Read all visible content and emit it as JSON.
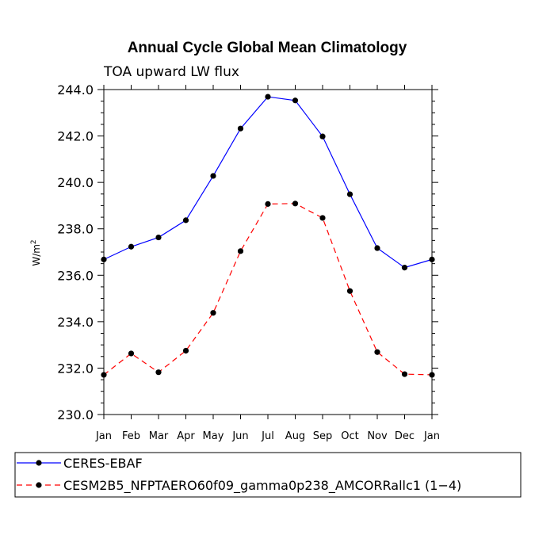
{
  "chart_data": {
    "type": "line",
    "title": "Annual Cycle Global Mean Climatology",
    "subtitle": "TOA upward LW flux",
    "ylabel_base": "W/m",
    "ylabel_sup": "2",
    "xlabel": "",
    "categories": [
      "Jan",
      "Feb",
      "Mar",
      "Apr",
      "May",
      "Jun",
      "Jul",
      "Aug",
      "Sep",
      "Oct",
      "Nov",
      "Dec",
      "Jan"
    ],
    "ylim": [
      230.0,
      244.0
    ],
    "yticks": [
      230.0,
      232.0,
      234.0,
      236.0,
      238.0,
      240.0,
      242.0,
      244.0
    ],
    "ytick_labels": [
      "230.0",
      "232.0",
      "234.0",
      "236.0",
      "238.0",
      "240.0",
      "242.0",
      "244.0"
    ],
    "series": [
      {
        "name": "CERES-EBAF",
        "color": "#0000ff",
        "dash": "solid",
        "values": [
          236.68,
          237.23,
          237.63,
          238.37,
          240.28,
          242.32,
          243.69,
          243.53,
          241.98,
          239.49,
          237.17,
          236.33,
          236.68
        ]
      },
      {
        "name": "CESM2B5_NFPTAERO60f09_gamma0p238_AMCORRallc1 (1−4)",
        "color": "#ff0000",
        "dash": "dashed",
        "values": [
          231.71,
          232.63,
          231.82,
          232.75,
          234.38,
          237.04,
          239.07,
          239.09,
          238.47,
          235.32,
          232.69,
          231.74,
          231.71
        ]
      }
    ],
    "grid": false,
    "legend_position": "bottom-left"
  }
}
